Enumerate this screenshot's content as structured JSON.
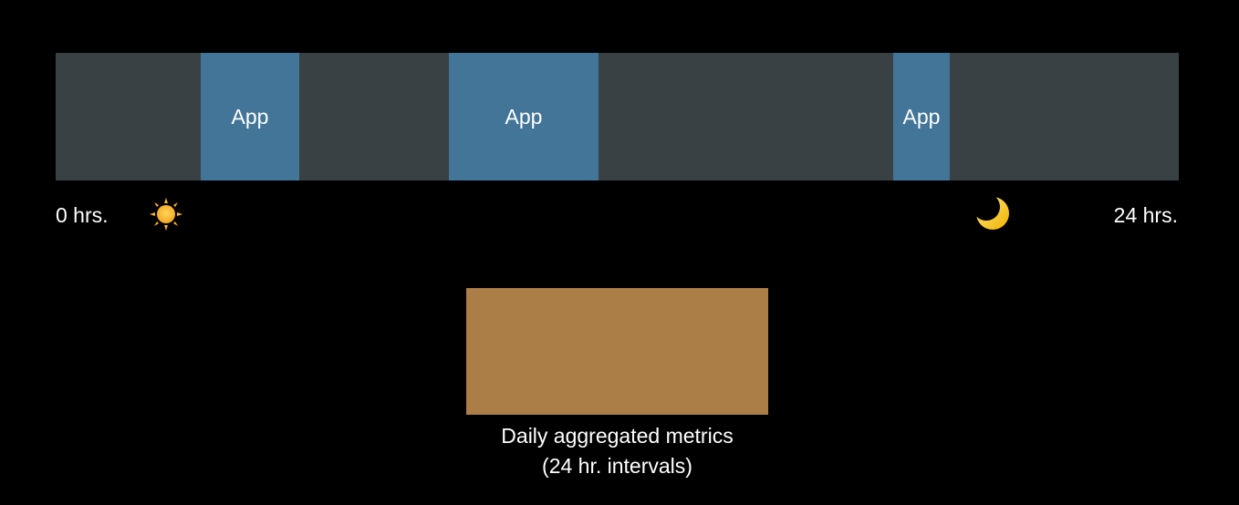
{
  "timeline": {
    "start_label": "0 hrs.",
    "end_label": "24 hrs.",
    "bar_color": "#3a4145",
    "app_color": "#427598",
    "sessions": [
      {
        "label": "App",
        "start_hr": 3.1,
        "end_hr": 5.2
      },
      {
        "label": "App",
        "start_hr": 8.4,
        "end_hr": 11.6
      },
      {
        "label": "App",
        "start_hr": 17.9,
        "end_hr": 19.1
      }
    ],
    "day_icon": "sun-icon",
    "night_icon": "moon-icon"
  },
  "metrics": {
    "color": "#ab7e47",
    "caption_line1": "Daily aggregated metrics",
    "caption_line2": "(24 hr. intervals)"
  }
}
